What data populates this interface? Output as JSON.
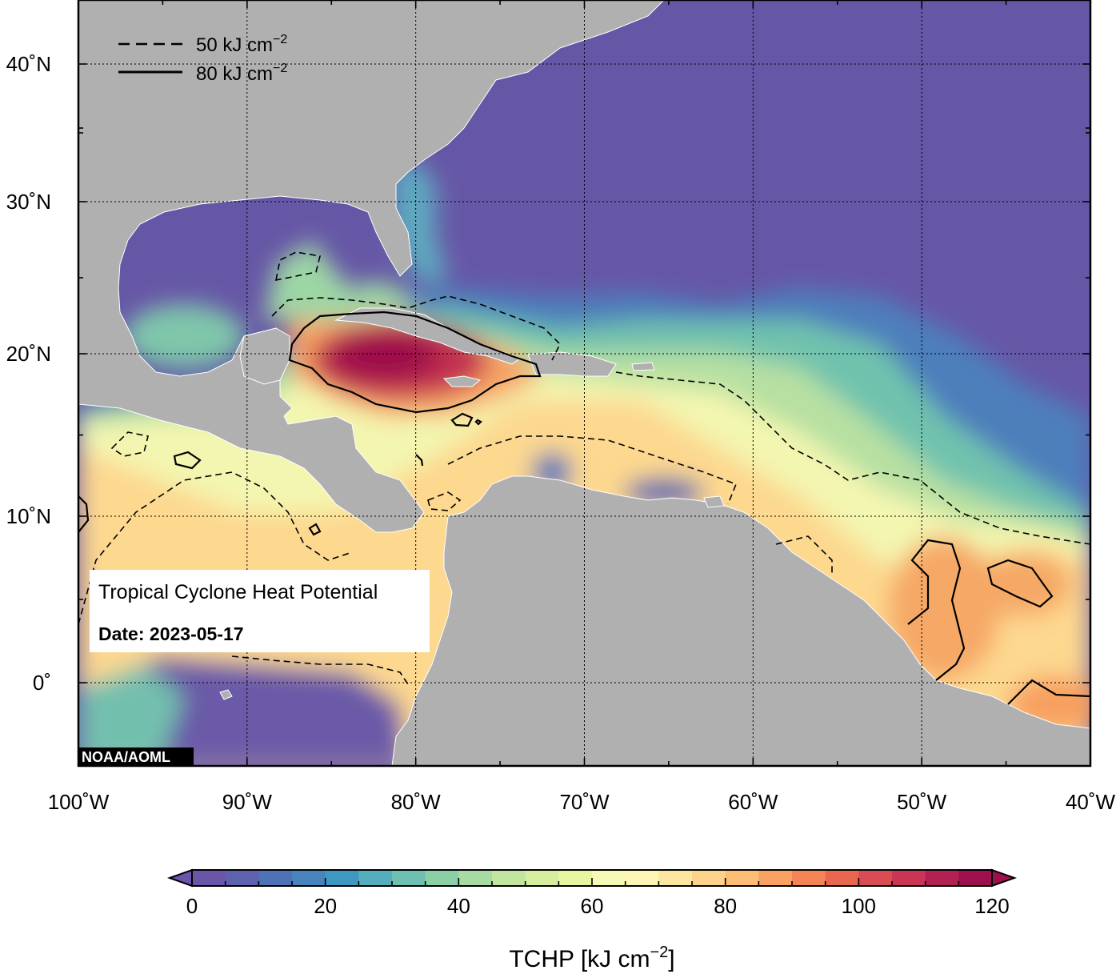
{
  "legend": {
    "dashed_label": "50 kJ cm",
    "solid_label": "80 kJ cm",
    "exponent": "−2"
  },
  "info_box": {
    "title": "Tropical Cyclone Heat Potential",
    "date_label": "Date: 2023-05-17"
  },
  "credit": "NOAA/AOML",
  "lat_ticks": [
    {
      "value": 40,
      "label": "40˚N"
    },
    {
      "value": 30,
      "label": "30˚N"
    },
    {
      "value": 20,
      "label": "20˚N"
    },
    {
      "value": 10,
      "label": "10˚N"
    },
    {
      "value": 0,
      "label": "0˚"
    }
  ],
  "lon_ticks": [
    {
      "value": -100,
      "label": "100˚W"
    },
    {
      "value": -90,
      "label": "90˚W"
    },
    {
      "value": -80,
      "label": "80˚W"
    },
    {
      "value": -70,
      "label": "70˚W"
    },
    {
      "value": -60,
      "label": "60˚W"
    },
    {
      "value": -50,
      "label": "50˚W"
    },
    {
      "value": -40,
      "label": "40˚W"
    }
  ],
  "map_extent": {
    "lon": [
      -100,
      -40
    ],
    "lat": [
      -5,
      45
    ]
  },
  "colorbar": {
    "min": 0,
    "max": 120,
    "step": 5,
    "tick_labels": [
      "0",
      "20",
      "40",
      "60",
      "80",
      "100",
      "120"
    ],
    "title": "TCHP [kJ cm",
    "title_exponent": "−2",
    "title_close": "]",
    "colors": [
      "#6a55a8",
      "#5d61ae",
      "#4f71b6",
      "#4784be",
      "#3f98c2",
      "#55aebd",
      "#6ec0b0",
      "#8bcfa6",
      "#a8dba4",
      "#c2e5a0",
      "#d8ee9f",
      "#eaf59f",
      "#f7fab4",
      "#fdf6b4",
      "#fde7a0",
      "#fdd38a",
      "#fdbd74",
      "#faa262",
      "#f48455",
      "#ea674f",
      "#d94c53",
      "#c83555",
      "#b32053",
      "#9e104c"
    ],
    "under_color": "#6a55a8",
    "over_color": "#9e104c"
  },
  "colors": {
    "land": "#b0b0b0",
    "cold_ocean": "#6657a6",
    "frame": "#000000"
  }
}
